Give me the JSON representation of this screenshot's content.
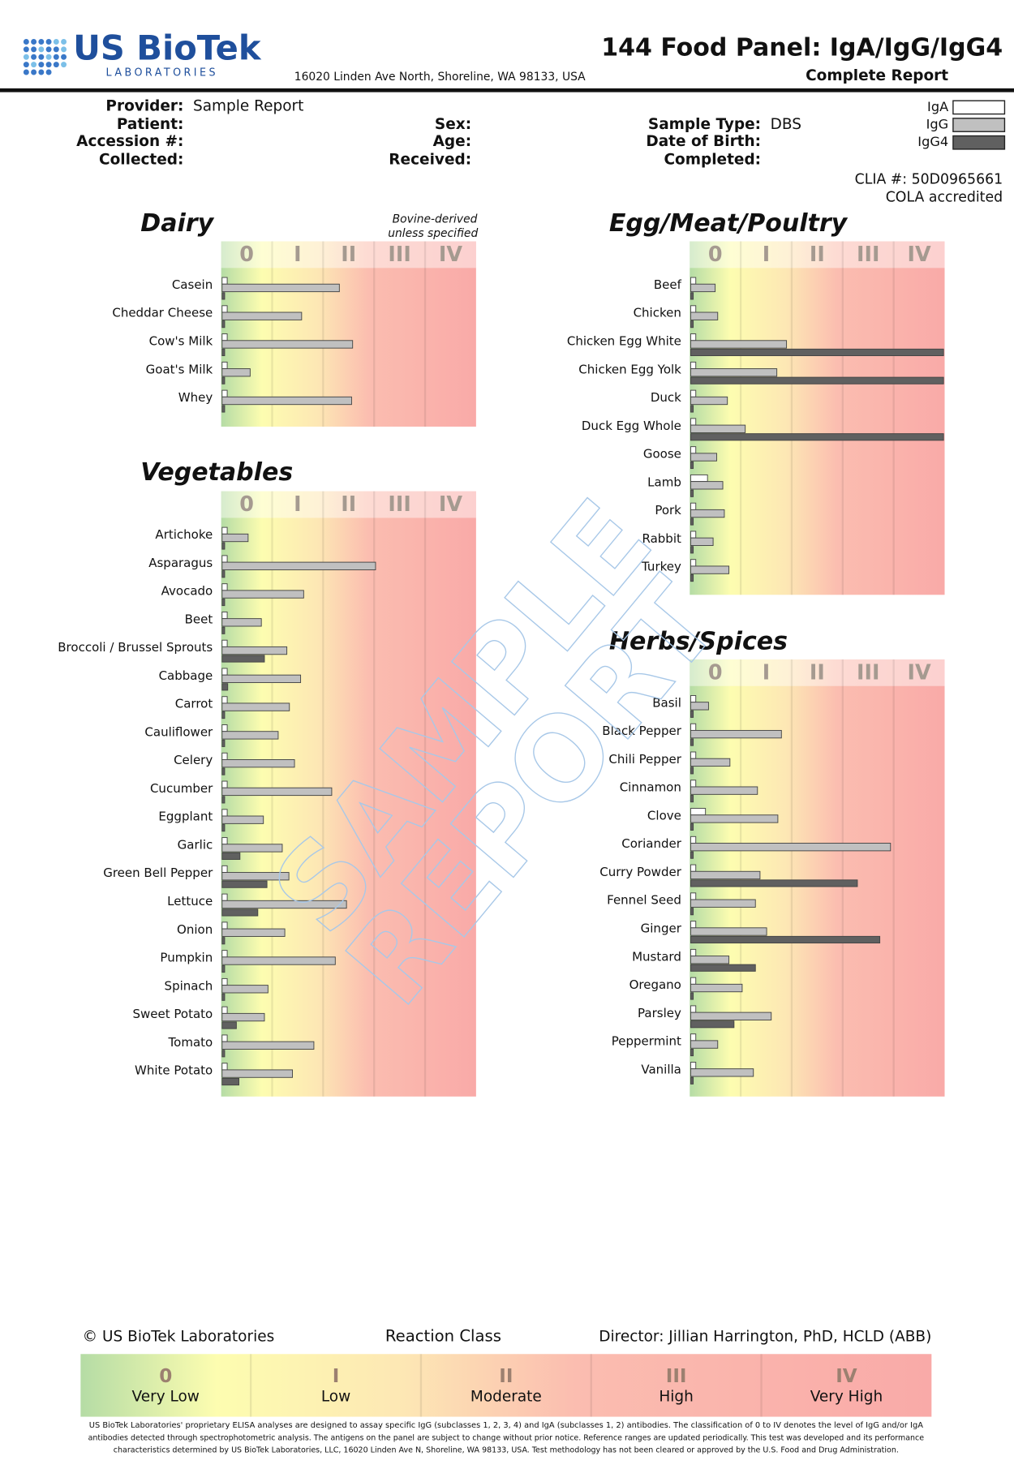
{
  "header": {
    "logo_name": "US BioTek",
    "logo_sub": "LABORATORIES",
    "address": "16020 Linden Ave North, Shoreline, WA 98133, USA",
    "title": "144 Food Panel: IgA/IgG/IgG4",
    "subtitle": "Complete Report"
  },
  "info": [
    [
      {
        "label": "Provider:",
        "value": "Sample Report"
      },
      {
        "label": "Patient:"
      },
      {
        "label": "Accession #:"
      },
      {
        "label": "Collected:"
      }
    ],
    [
      {
        "label": "Sex:"
      },
      {
        "label": "Age:"
      },
      {
        "label": "Received:"
      }
    ],
    [
      {
        "label": "Sample Type:",
        "value": "DBS"
      },
      {
        "label": "Date of Birth:"
      },
      {
        "label": "Completed:"
      }
    ]
  ],
  "legend": [
    {
      "name": "IgA",
      "color": "#ffffff"
    },
    {
      "name": "IgG",
      "color": "#c0c0c0"
    },
    {
      "name": "IgG4",
      "color": "#606060"
    }
  ],
  "accreditation": [
    "CLIA #: 50D0965661",
    "COLA accredited"
  ],
  "class_labels": [
    "0",
    "I",
    "II",
    "III",
    "IV"
  ],
  "xlim": [
    0,
    5
  ],
  "sections": [
    {
      "title": "Dairy",
      "note": [
        "Bovine-derived",
        "unless specified"
      ],
      "foods": [
        {
          "name": "Casein",
          "values": [
            0.1,
            2.3,
            0.05
          ]
        },
        {
          "name": "Cheddar Cheese",
          "values": [
            0.1,
            1.56,
            0.05
          ]
        },
        {
          "name": "Cow's Milk",
          "values": [
            0.1,
            2.56,
            0.05
          ]
        },
        {
          "name": "Goat's Milk",
          "values": [
            0.1,
            0.55,
            0.05
          ]
        },
        {
          "name": "Whey",
          "values": [
            0.1,
            2.54,
            0.05
          ]
        }
      ]
    },
    {
      "title": "Vegetables",
      "foods": [
        {
          "name": "Artichoke",
          "values": [
            0.1,
            0.51,
            0.05
          ]
        },
        {
          "name": "Asparagus",
          "values": [
            0.1,
            3.01,
            0.05
          ]
        },
        {
          "name": "Avocado",
          "values": [
            0.1,
            1.6,
            0.05
          ]
        },
        {
          "name": "Beet",
          "values": [
            0.1,
            0.77,
            0.05
          ]
        },
        {
          "name": "Broccoli / Brussel Sprouts",
          "values": [
            0.1,
            1.27,
            0.83
          ]
        },
        {
          "name": "Cabbage",
          "values": [
            0.1,
            1.54,
            0.11
          ]
        },
        {
          "name": "Carrot",
          "values": [
            0.1,
            1.32,
            0.05
          ]
        },
        {
          "name": "Cauliflower",
          "values": [
            0.1,
            1.1,
            0.05
          ]
        },
        {
          "name": "Celery",
          "values": [
            0.1,
            1.42,
            0.05
          ]
        },
        {
          "name": "Cucumber",
          "values": [
            0.1,
            2.15,
            0.05
          ]
        },
        {
          "name": "Eggplant",
          "values": [
            0.1,
            0.81,
            0.05
          ]
        },
        {
          "name": "Garlic",
          "values": [
            0.1,
            1.18,
            0.35
          ]
        },
        {
          "name": "Green Bell Pepper",
          "values": [
            0.1,
            1.31,
            0.88
          ]
        },
        {
          "name": "Lettuce",
          "values": [
            0.1,
            2.44,
            0.7
          ]
        },
        {
          "name": "Onion",
          "values": [
            0.1,
            1.23,
            0.05
          ]
        },
        {
          "name": "Pumpkin",
          "values": [
            0.1,
            2.22,
            0.05
          ]
        },
        {
          "name": "Spinach",
          "values": [
            0.1,
            0.9,
            0.05
          ]
        },
        {
          "name": "Sweet Potato",
          "values": [
            0.1,
            0.83,
            0.28
          ]
        },
        {
          "name": "Tomato",
          "values": [
            0.1,
            1.8,
            0.05
          ]
        },
        {
          "name": "White Potato",
          "values": [
            0.1,
            1.38,
            0.33
          ]
        }
      ]
    },
    {
      "title": "Egg/Meat/Poultry",
      "foods": [
        {
          "name": "Beef",
          "values": [
            0.1,
            0.48,
            0.05
          ]
        },
        {
          "name": "Chicken",
          "values": [
            0.1,
            0.53,
            0.05
          ]
        },
        {
          "name": "Chicken Egg White",
          "values": [
            0.1,
            1.88,
            4.96
          ]
        },
        {
          "name": "Chicken Egg Yolk",
          "values": [
            0.1,
            1.69,
            4.96
          ]
        },
        {
          "name": "Duck",
          "values": [
            0.1,
            0.72,
            0.05
          ]
        },
        {
          "name": "Duck Egg Whole",
          "values": [
            0.1,
            1.07,
            4.96
          ]
        },
        {
          "name": "Goose",
          "values": [
            0.1,
            0.51,
            0.05
          ]
        },
        {
          "name": "Lamb",
          "values": [
            0.33,
            0.63,
            0.05
          ]
        },
        {
          "name": "Pork",
          "values": [
            0.1,
            0.66,
            0.05
          ]
        },
        {
          "name": "Rabbit",
          "values": [
            0.1,
            0.44,
            0.05
          ]
        },
        {
          "name": "Turkey",
          "values": [
            0.1,
            0.75,
            0.05
          ]
        }
      ]
    },
    {
      "title": "Herbs/Spices",
      "foods": [
        {
          "name": "Basil",
          "values": [
            0.1,
            0.35,
            0.05
          ]
        },
        {
          "name": "Black Pepper",
          "values": [
            0.1,
            1.78,
            0.05
          ]
        },
        {
          "name": "Chili Pepper",
          "values": [
            0.1,
            0.77,
            0.05
          ]
        },
        {
          "name": "Cinnamon",
          "values": [
            0.1,
            1.31,
            0.05
          ]
        },
        {
          "name": "Clove",
          "values": [
            0.29,
            1.71,
            0.05
          ]
        },
        {
          "name": "Coriander",
          "values": [
            0.1,
            3.92,
            0.05
          ]
        },
        {
          "name": "Curry Powder",
          "values": [
            0.1,
            1.36,
            3.27
          ]
        },
        {
          "name": "Fennel Seed",
          "values": [
            0.1,
            1.27,
            0.05
          ]
        },
        {
          "name": "Ginger",
          "values": [
            0.1,
            1.49,
            3.71
          ]
        },
        {
          "name": "Mustard",
          "values": [
            0.1,
            0.75,
            1.27
          ]
        },
        {
          "name": "Oregano",
          "values": [
            0.1,
            1.01,
            0.05
          ]
        },
        {
          "name": "Parsley",
          "values": [
            0.1,
            1.58,
            0.85
          ]
        },
        {
          "name": "Peppermint",
          "values": [
            0.1,
            0.53,
            0.05
          ]
        },
        {
          "name": "Vanilla",
          "values": [
            0.1,
            1.23,
            0.05
          ]
        }
      ]
    }
  ],
  "watermark": [
    "SAMPLE",
    "REPORT"
  ],
  "footer": {
    "copyright": "© US BioTek Laboratories",
    "reaction_class": "Reaction Class",
    "director": "Director: Jillian Harrington, PhD, HCLD (ABB)",
    "classes": [
      {
        "numeral": "0",
        "name": "Very Low"
      },
      {
        "numeral": "I",
        "name": "Low"
      },
      {
        "numeral": "II",
        "name": "Moderate"
      },
      {
        "numeral": "III",
        "name": "High"
      },
      {
        "numeral": "IV",
        "name": "Very High"
      }
    ],
    "disclaimer": [
      "US BioTek Laboratories' proprietary ELISA analyses are designed to assay specific IgG (subclasses 1, 2, 3, 4) and IgA (subclasses 1, 2) antibodies. The classification of 0 to IV denotes the level of IgG and/or IgA",
      "antibodies detected through spectrophotometric analysis. The antigens on the panel are subject to change without prior notice. Reference ranges are updated periodically. This test was developed and its performance",
      "characteristics determined by US BioTek Laboratories, LLC, 16020 Linden Ave N, Shoreline, WA 98133, USA. Test methodology has not been cleared or approved by the U.S. Food and Drug Administration."
    ]
  }
}
